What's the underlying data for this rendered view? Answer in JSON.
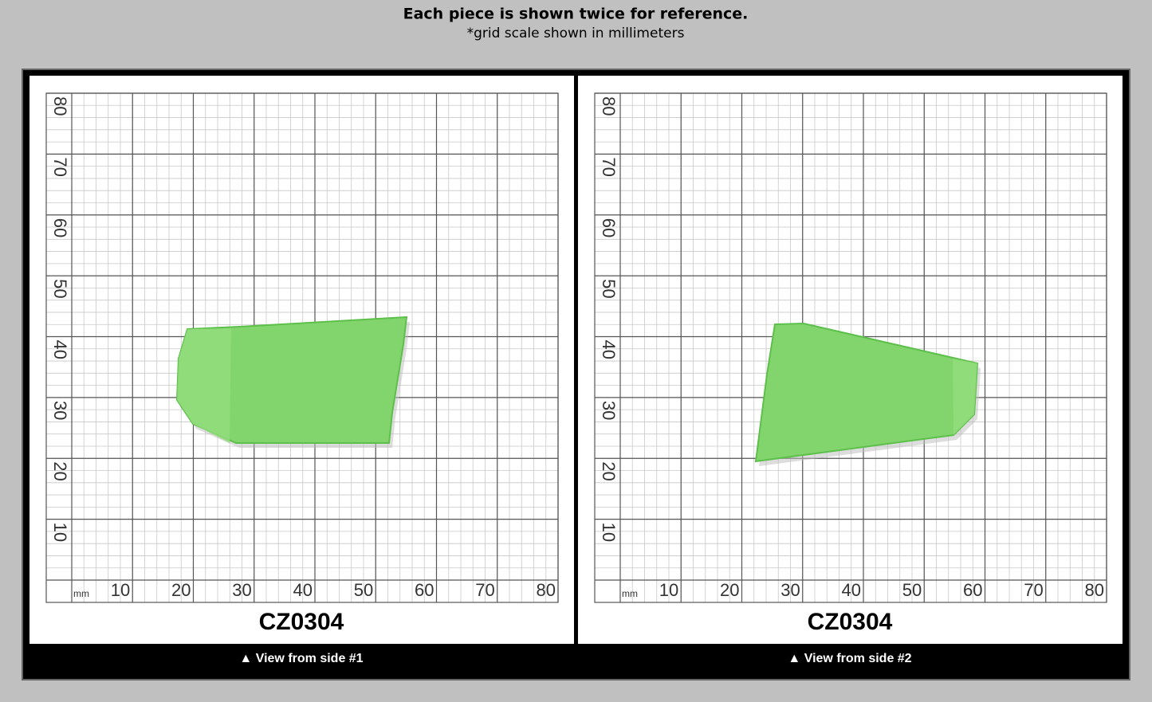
{
  "header": {
    "title": "Each piece is shown twice for reference.",
    "subtitle": "*grid scale shown in millimeters"
  },
  "panels": [
    {
      "label": "CZ0304",
      "caption": "▲ View from side #1",
      "unit": "mm",
      "x_labels": [
        10,
        20,
        30,
        40,
        50,
        60,
        70,
        80
      ],
      "y_labels": [
        10,
        20,
        30,
        40,
        50,
        60,
        70,
        80
      ]
    },
    {
      "label": "CZ0304",
      "caption": "▲ View from side #2",
      "unit": "mm",
      "x_labels": [
        10,
        20,
        30,
        40,
        50,
        60,
        70,
        80
      ],
      "y_labels": [
        10,
        20,
        30,
        40,
        50,
        60,
        70,
        80
      ]
    }
  ]
}
